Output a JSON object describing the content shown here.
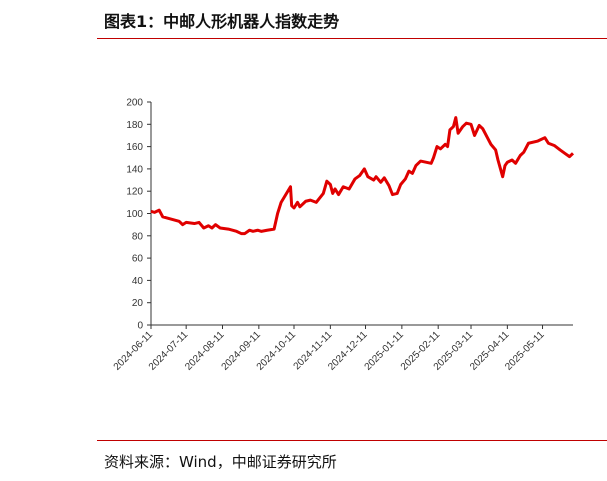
{
  "header": {
    "title": "图表1：中邮人形机器人指数走势"
  },
  "chart_data": {
    "type": "line",
    "x": [
      "2024-06-11",
      "2024-06-14",
      "2024-06-18",
      "2024-06-21",
      "2024-06-28",
      "2024-07-05",
      "2024-07-08",
      "2024-07-11",
      "2024-07-18",
      "2024-07-22",
      "2024-07-26",
      "2024-07-30",
      "2024-08-02",
      "2024-08-05",
      "2024-08-09",
      "2024-08-16",
      "2024-08-23",
      "2024-08-27",
      "2024-08-30",
      "2024-09-03",
      "2024-09-06",
      "2024-09-10",
      "2024-09-13",
      "2024-09-18",
      "2024-09-24",
      "2024-09-27",
      "2024-09-30",
      "2024-10-08",
      "2024-10-09",
      "2024-10-11",
      "2024-10-14",
      "2024-10-16",
      "2024-10-21",
      "2024-10-25",
      "2024-10-30",
      "2024-11-05",
      "2024-11-08",
      "2024-11-11",
      "2024-11-13",
      "2024-11-15",
      "2024-11-18",
      "2024-11-22",
      "2024-11-27",
      "2024-12-02",
      "2024-12-06",
      "2024-12-10",
      "2024-12-13",
      "2024-12-18",
      "2024-12-20",
      "2024-12-24",
      "2024-12-27",
      "2024-12-31",
      "2025-01-03",
      "2025-01-07",
      "2025-01-10",
      "2025-01-14",
      "2025-01-17",
      "2025-01-20",
      "2025-01-23",
      "2025-01-27",
      "2025-02-05",
      "2025-02-07",
      "2025-02-10",
      "2025-02-13",
      "2025-02-17",
      "2025-02-19",
      "2025-02-21",
      "2025-02-24",
      "2025-02-26",
      "2025-02-28",
      "2025-03-04",
      "2025-03-07",
      "2025-03-11",
      "2025-03-14",
      "2025-03-18",
      "2025-03-21",
      "2025-03-25",
      "2025-03-28",
      "2025-04-01",
      "2025-04-03",
      "2025-04-07",
      "2025-04-09",
      "2025-04-11",
      "2025-04-15",
      "2025-04-18",
      "2025-04-22",
      "2025-04-25",
      "2025-04-29",
      "2025-05-07",
      "2025-05-09",
      "2025-05-13",
      "2025-05-16",
      "2025-05-21",
      "2025-05-26",
      "2025-05-30",
      "2025-06-03",
      "2025-06-06"
    ],
    "series": [
      {
        "color": "#e00000",
        "values": [
          102,
          101,
          103,
          97,
          95,
          93,
          90,
          92,
          91,
          92,
          87,
          89,
          87,
          90,
          87,
          86,
          84,
          82,
          82,
          85,
          84,
          85,
          84,
          85,
          86,
          100,
          110,
          124,
          107,
          105,
          110,
          106,
          111,
          112,
          110,
          118,
          129,
          126,
          118,
          122,
          117,
          124,
          122,
          131,
          134,
          140,
          133,
          130,
          133,
          128,
          132,
          125,
          117,
          118,
          126,
          131,
          138,
          136,
          143,
          147,
          145,
          150,
          160,
          158,
          162,
          160,
          175,
          178,
          186,
          172,
          178,
          181,
          180,
          170,
          179,
          176,
          168,
          162,
          157,
          148,
          133,
          143,
          146,
          148,
          145,
          152,
          155,
          163,
          165,
          166,
          168,
          163,
          161,
          157,
          154,
          151,
          154
        ]
      }
    ],
    "xlim": [
      "2024-06-11",
      "2025-06-06"
    ],
    "xticks": [
      "2024-06-11",
      "2024-07-11",
      "2024-08-11",
      "2024-09-11",
      "2024-10-11",
      "2024-11-11",
      "2024-12-11",
      "2025-01-11",
      "2025-02-11",
      "2025-03-11",
      "2025-04-11",
      "2025-05-11"
    ],
    "ylim": [
      0,
      200
    ],
    "yticks": [
      0,
      20,
      40,
      60,
      80,
      100,
      120,
      140,
      160,
      180,
      200
    ]
  },
  "footer": {
    "source": "资料来源：Wind，中邮证券研究所"
  }
}
